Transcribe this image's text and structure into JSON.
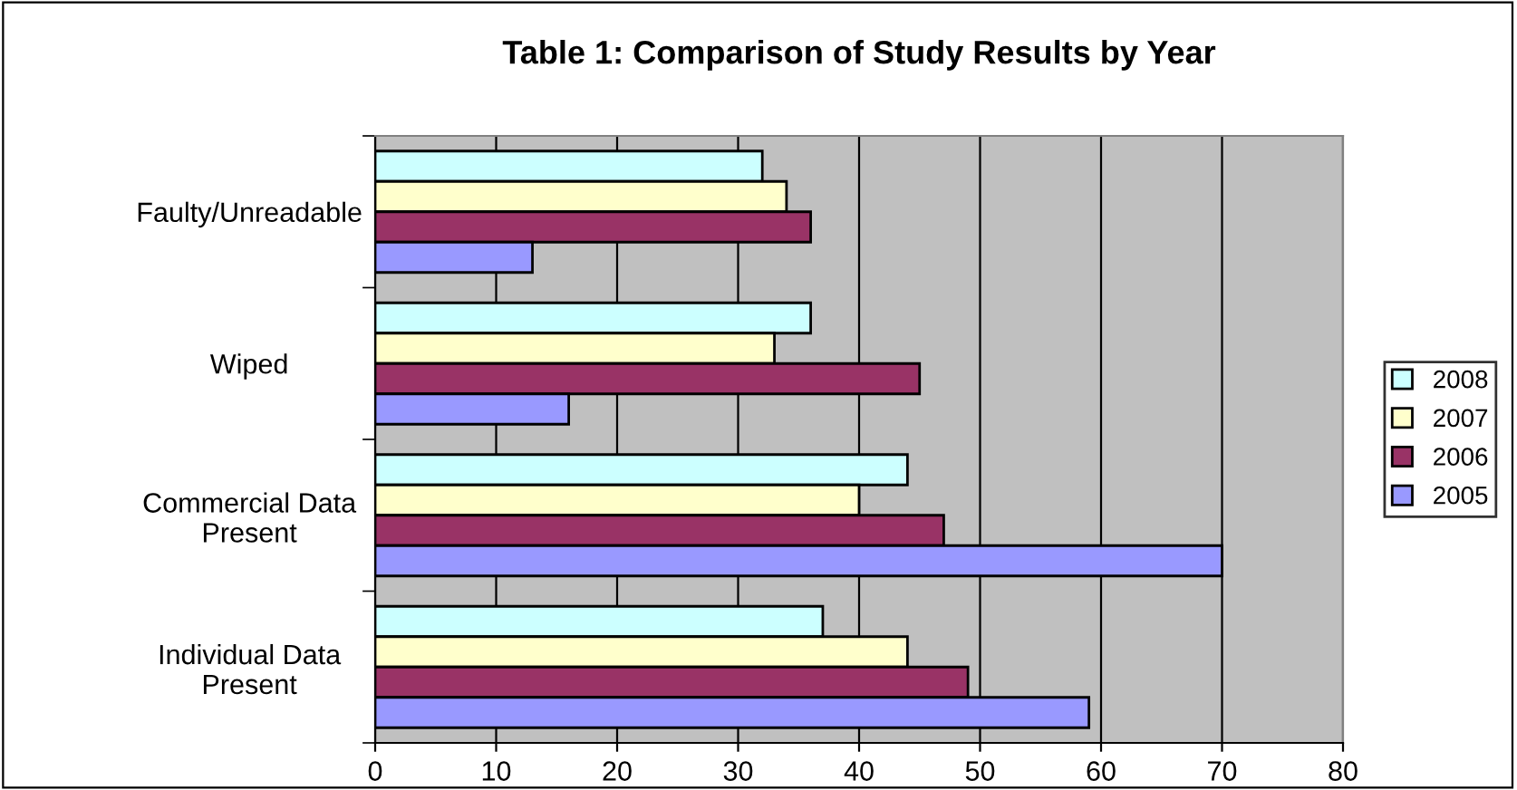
{
  "chart_data": {
    "type": "bar",
    "orientation": "horizontal",
    "title": "Table 1: Comparison of Study Results by Year",
    "categories": [
      "Faulty/Unreadable",
      "Wiped",
      "Commercial Data\nPresent",
      "Individual Data\nPresent"
    ],
    "series": [
      {
        "name": "2008",
        "color": "#ccffff",
        "values": [
          32,
          36,
          44,
          37
        ]
      },
      {
        "name": "2007",
        "color": "#ffffcc",
        "values": [
          34,
          33,
          40,
          44
        ]
      },
      {
        "name": "2006",
        "color": "#993366",
        "values": [
          36,
          45,
          47,
          49
        ]
      },
      {
        "name": "2005",
        "color": "#9999ff",
        "values": [
          13,
          16,
          70,
          59
        ]
      }
    ],
    "xlim": [
      0,
      80
    ],
    "xticks": [
      0,
      10,
      20,
      30,
      40,
      50,
      60,
      70,
      80
    ],
    "grid": "x",
    "legend": "right"
  }
}
